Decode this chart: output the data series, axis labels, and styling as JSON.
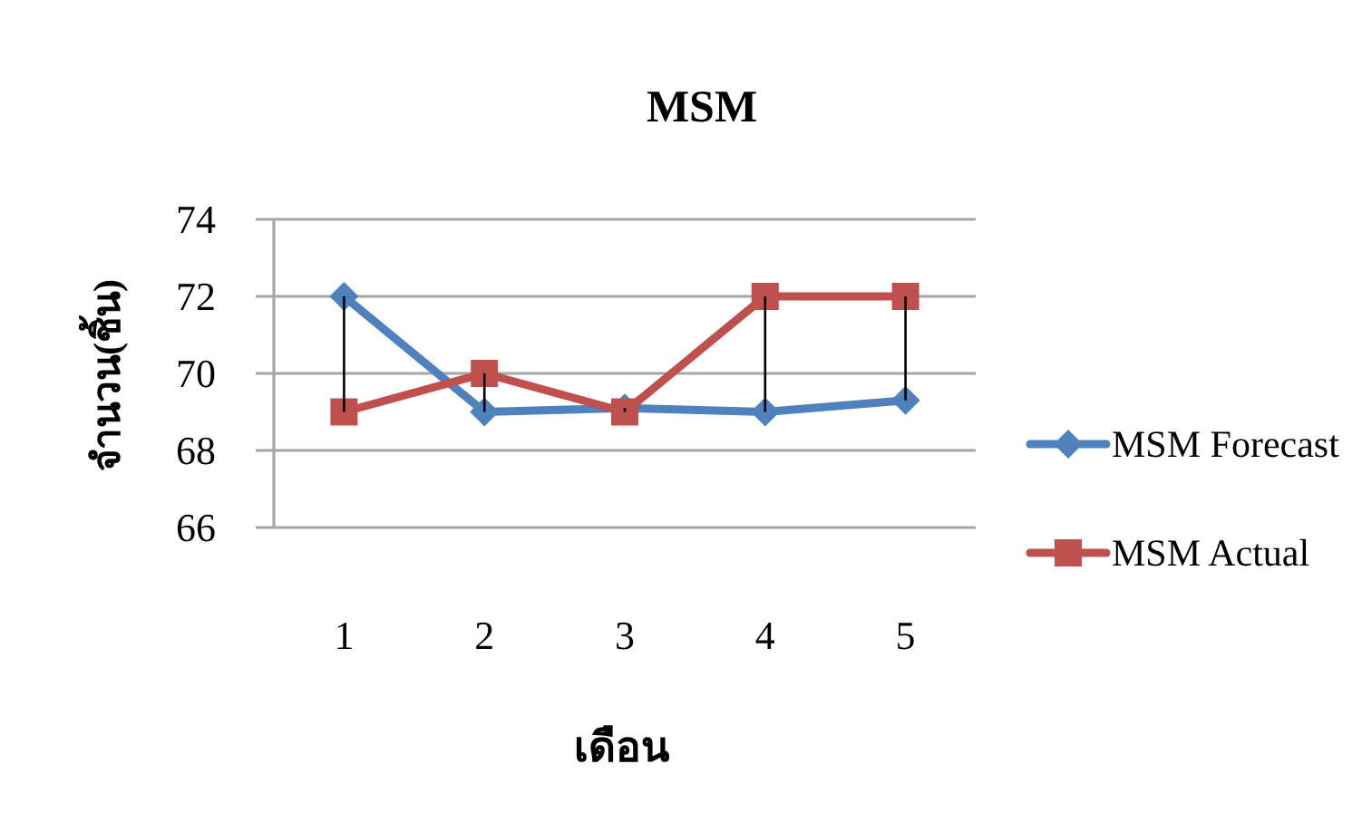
{
  "chart_data": {
    "type": "line",
    "title": "MSM",
    "xlabel": "เดือน",
    "ylabel": "จำนวน(ชิ้น)",
    "categories": [
      "1",
      "2",
      "3",
      "4",
      "5"
    ],
    "series": [
      {
        "name": "MSM Forecast",
        "color": "#4f81bd",
        "marker": "diamond",
        "values": [
          72,
          69,
          69.1,
          69,
          69.3
        ],
        "errors": [
          [
            69,
            72
          ],
          [
            69,
            70
          ],
          [
            69,
            69.1
          ],
          [
            69,
            72
          ],
          [
            69.3,
            72
          ]
        ]
      },
      {
        "name": "MSM Actual",
        "color": "#c0504d",
        "marker": "square",
        "values": [
          69,
          70,
          69,
          72,
          72
        ]
      }
    ],
    "ylim": [
      66,
      74
    ],
    "yticks": [
      66,
      68,
      70,
      72,
      74
    ],
    "grid": "y",
    "legend": "right"
  }
}
